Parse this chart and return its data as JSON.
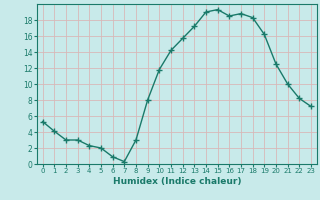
{
  "x": [
    0,
    1,
    2,
    3,
    4,
    5,
    6,
    7,
    8,
    9,
    10,
    11,
    12,
    13,
    14,
    15,
    16,
    17,
    18,
    19,
    20,
    21,
    22,
    23
  ],
  "y": [
    5.3,
    4.1,
    3.0,
    3.0,
    2.3,
    2.0,
    0.9,
    0.3,
    3.0,
    8.0,
    11.8,
    14.2,
    15.7,
    17.2,
    19.0,
    19.3,
    18.5,
    18.8,
    18.3,
    16.2,
    12.5,
    10.0,
    8.2,
    7.2
  ],
  "line_color": "#1a7a6a",
  "marker": "+",
  "marker_size": 4,
  "xlabel": "Humidex (Indice chaleur)",
  "xlim": [
    -0.5,
    23.5
  ],
  "ylim": [
    0,
    20
  ],
  "yticks": [
    0,
    2,
    4,
    6,
    8,
    10,
    12,
    14,
    16,
    18
  ],
  "xticks": [
    0,
    1,
    2,
    3,
    4,
    5,
    6,
    7,
    8,
    9,
    10,
    11,
    12,
    13,
    14,
    15,
    16,
    17,
    18,
    19,
    20,
    21,
    22,
    23
  ],
  "bg_color": "#c8eaea",
  "grid_color": "#d8b8b8",
  "tick_color": "#1a7a6a",
  "label_color": "#1a7a6a",
  "spine_color": "#1a7a6a"
}
